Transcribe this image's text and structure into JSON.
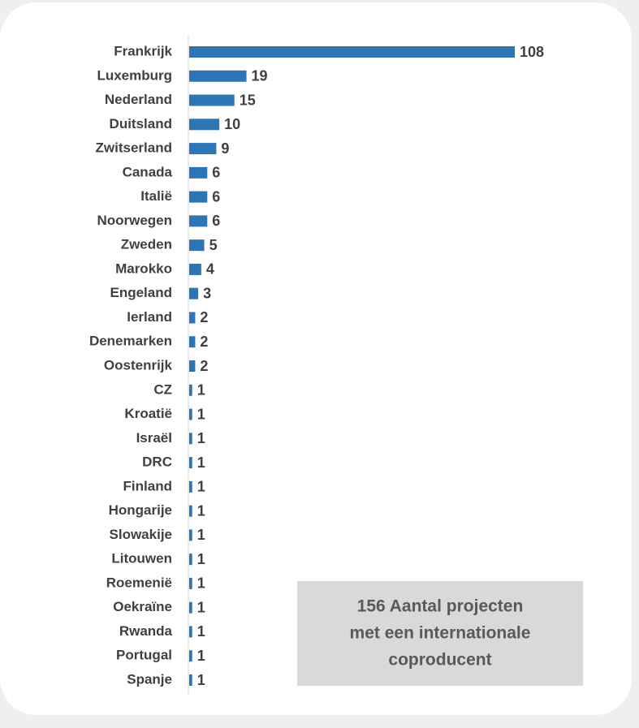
{
  "chart_data": {
    "type": "hbar",
    "categories": [
      "Frankrijk",
      "Luxemburg",
      "Nederland",
      "Duitsland",
      "Zwitserland",
      "Canada",
      "Italië",
      "Noorwegen",
      "Zweden",
      "Marokko",
      "Engeland",
      "Ierland",
      "Denemarken",
      "Oostenrijk",
      "CZ",
      "Kroatië",
      "Israël",
      "DRC",
      "Finland",
      "Hongarije",
      "Slowakije",
      "Litouwen",
      "Roemenië",
      "Oekraïne",
      "Rwanda",
      "Portugal",
      "Spanje"
    ],
    "values": [
      108,
      19,
      15,
      10,
      9,
      6,
      6,
      6,
      5,
      4,
      3,
      2,
      2,
      2,
      1,
      1,
      1,
      1,
      1,
      1,
      1,
      1,
      1,
      1,
      1,
      1,
      1
    ],
    "color": "#2e75b6",
    "xlim": [
      0,
      108
    ],
    "annotation": [
      "156 Aantal projecten",
      "met een internationale",
      "coproducent"
    ]
  }
}
